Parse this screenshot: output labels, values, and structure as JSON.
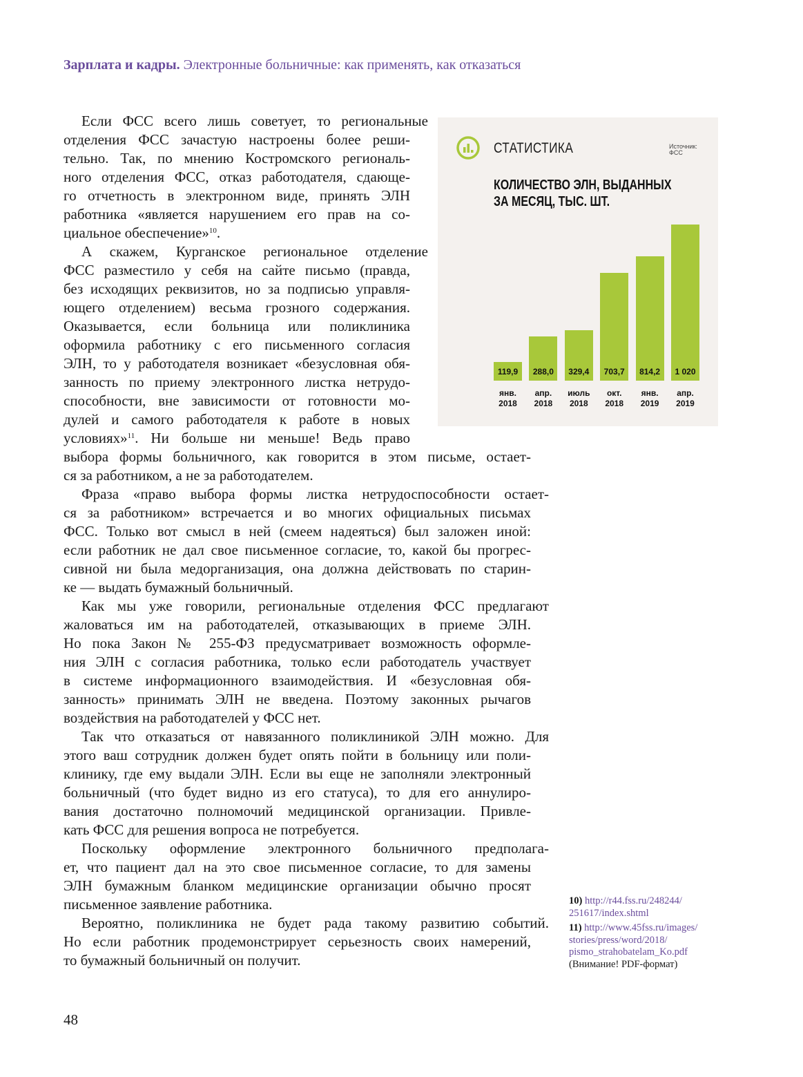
{
  "header": {
    "section": "Зарплата и кадры.",
    "title": "Электронные больничные: как применять, как отказаться"
  },
  "paragraphs": [
    [
      "Если ФСС всего лишь советует, то региональные",
      "отделения ФСС зачастую настроены более реши-",
      "тельно. Так, по мнению Костромского региональ-",
      "ного отделения ФСС, отказ работодателя, сдающе-",
      "го отчетность в электронном виде, принять ЭЛН",
      "работника «является нарушением его прав на со-",
      {
        "text": "циальное обеспечение»",
        "sup": "10",
        "tail": "."
      }
    ],
    [
      "А скажем, Курганское региональное отделение",
      "ФСС разместило у себя на сайте письмо (правда,",
      "без исходящих реквизитов, но за подписью управля-",
      "ющего отделением) весьма грозного содержания.",
      "Оказывается, если больница или поликлиника",
      "оформила работнику с его письменного согласия",
      "ЭЛН, то у работодателя возникает «безусловная обя-",
      "занность по приему электронного листка нетрудо-",
      "способности, вне зависимости от готовности мо-",
      "дулей и самого работодателя к работе в новых",
      {
        "text": "условиях»",
        "sup": "11",
        "tail": ". Ни больше ни меньше! Ведь право"
      },
      "выбора формы больничного, как говорится в этом письме, остает-",
      "ся за работником, а не за работодателем."
    ],
    [
      "Фраза «право выбора формы листка нетрудоспособности остает-",
      "ся за работником» встречается и во многих официальных письмах",
      "ФСС. Только вот смысл в ней (смеем надеяться) был заложен иной:",
      "если работник не дал свое письменное согласие, то, какой бы прогрес-",
      "сивной ни была медорганизация, она должна действовать по старин-",
      "ке — выдать бумажный больничный."
    ],
    [
      "Как мы уже говорили, региональные отделения ФСС предлагают",
      "жаловаться им на работодателей, отказывающих в приеме ЭЛН.",
      "Но пока Закон № 255-ФЗ предусматривает возможность оформле-",
      "ния ЭЛН с согласия работника, только если работодатель участвует",
      "в системе информационного взаимодействия. И «безусловная обя-",
      "занность» принимать ЭЛН не введена. Поэтому законных рычагов",
      "воздействия на работодателей у ФСС нет."
    ],
    [
      "Так что отказаться от навязанного поликлиникой ЭЛН можно. Для",
      "этого ваш сотрудник должен будет опять пойти в больницу или поли-",
      "клинику, где ему выдали ЭЛН. Если вы еще не заполняли электронный",
      "больничный (что будет видно из его статуса), то для его аннулиро-",
      "вания достаточно полномочий медицинской организации. Привле-",
      "кать ФСС для решения вопроса не потребуется."
    ],
    [
      "Поскольку оформление электронного больничного предполага-",
      "ет, что пациент дал на это свое письменное согласие, то для замены",
      "ЭЛН бумажным бланком медицинские организации обычно просят",
      "письменное заявление работника."
    ],
    [
      "Вероятно, поликлиника не будет рада такому развитию событий.",
      "Но если работник продемонстрирует серьезность своих намерений,",
      "то бумажный больничный он получит."
    ]
  ],
  "chart_data": {
    "type": "bar",
    "kicker": "СТАТИСТИКА",
    "source": [
      "Источник:",
      "ФСС"
    ],
    "title": [
      "КОЛИЧЕСТВО ЭЛН, ВЫДАННЫХ",
      "ЗА МЕСЯЦ, ТЫС. ШТ."
    ],
    "categories": [
      [
        "янв.",
        "2018"
      ],
      [
        "апр.",
        "2018"
      ],
      [
        "июль",
        "2018"
      ],
      [
        "окт.",
        "2018"
      ],
      [
        "янв.",
        "2019"
      ],
      [
        "апр.",
        "2019"
      ]
    ],
    "values": [
      119.9,
      288.0,
      329.4,
      703.7,
      814.2,
      1020
    ],
    "value_labels": [
      "119,9",
      "288,0",
      "329,4",
      "703,7",
      "814,2",
      "1 020"
    ],
    "ylim": [
      0,
      1020
    ],
    "grid": false,
    "bar_color": "#a8c83a",
    "icon": "bar-chart-circle-icon"
  },
  "footnotes": [
    {
      "num": "10)",
      "lines": [
        "http://r44.fss.ru/248244/",
        "251617/index.shtml"
      ]
    },
    {
      "num": "11)",
      "lines": [
        "http://www.45fss.ru/images/",
        "stories/press/word/2018/",
        "pismo_strahobatelam_Ko.pdf"
      ],
      "note": "(Внимание! PDF-формат)"
    }
  ],
  "page_number": "48",
  "colors": {
    "accent": "#6a4c9c",
    "chart_bg": "#f4f1ee",
    "bar": "#a8c83a"
  }
}
